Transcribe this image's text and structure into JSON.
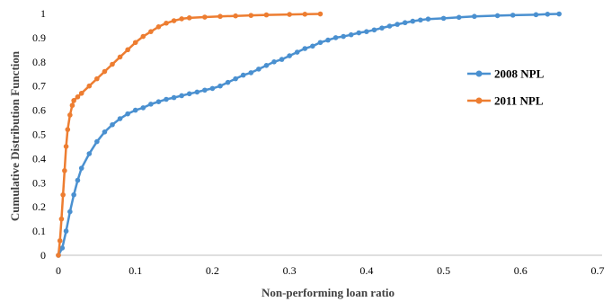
{
  "chart_data": {
    "type": "line",
    "title": "",
    "xlabel": "Non-performing loan ratio",
    "ylabel": "Cumulative Distribution Function",
    "xlim": [
      0,
      0.7
    ],
    "ylim": [
      0,
      1
    ],
    "x_ticks": [
      "0",
      "0.1",
      "0.2",
      "0.3",
      "0.4",
      "0.5",
      "0.6",
      "0.7"
    ],
    "y_ticks": [
      "0",
      "0.1",
      "0.2",
      "0.3",
      "0.4",
      "0.5",
      "0.6",
      "0.7",
      "0.8",
      "0.9",
      "1"
    ],
    "grid": false,
    "legend_position": "right",
    "series": [
      {
        "name": "2008 NPL",
        "color": "#4A90D0",
        "points": [
          [
            0,
            0
          ],
          [
            0.005,
            0.03
          ],
          [
            0.01,
            0.1
          ],
          [
            0.015,
            0.18
          ],
          [
            0.02,
            0.25
          ],
          [
            0.025,
            0.31
          ],
          [
            0.03,
            0.36
          ],
          [
            0.04,
            0.42
          ],
          [
            0.05,
            0.47
          ],
          [
            0.06,
            0.51
          ],
          [
            0.07,
            0.54
          ],
          [
            0.08,
            0.565
          ],
          [
            0.09,
            0.585
          ],
          [
            0.1,
            0.6
          ],
          [
            0.11,
            0.61
          ],
          [
            0.12,
            0.625
          ],
          [
            0.13,
            0.635
          ],
          [
            0.14,
            0.645
          ],
          [
            0.15,
            0.652
          ],
          [
            0.16,
            0.66
          ],
          [
            0.17,
            0.668
          ],
          [
            0.18,
            0.675
          ],
          [
            0.19,
            0.683
          ],
          [
            0.2,
            0.69
          ],
          [
            0.21,
            0.7
          ],
          [
            0.22,
            0.715
          ],
          [
            0.23,
            0.73
          ],
          [
            0.24,
            0.745
          ],
          [
            0.25,
            0.755
          ],
          [
            0.26,
            0.77
          ],
          [
            0.27,
            0.785
          ],
          [
            0.28,
            0.8
          ],
          [
            0.29,
            0.81
          ],
          [
            0.3,
            0.825
          ],
          [
            0.31,
            0.84
          ],
          [
            0.32,
            0.855
          ],
          [
            0.33,
            0.865
          ],
          [
            0.34,
            0.88
          ],
          [
            0.35,
            0.89
          ],
          [
            0.36,
            0.9
          ],
          [
            0.37,
            0.905
          ],
          [
            0.38,
            0.912
          ],
          [
            0.39,
            0.92
          ],
          [
            0.4,
            0.925
          ],
          [
            0.41,
            0.932
          ],
          [
            0.42,
            0.94
          ],
          [
            0.43,
            0.948
          ],
          [
            0.44,
            0.955
          ],
          [
            0.45,
            0.962
          ],
          [
            0.46,
            0.968
          ],
          [
            0.47,
            0.973
          ],
          [
            0.48,
            0.977
          ],
          [
            0.5,
            0.98
          ],
          [
            0.52,
            0.984
          ],
          [
            0.54,
            0.988
          ],
          [
            0.57,
            0.991
          ],
          [
            0.59,
            0.993
          ],
          [
            0.62,
            0.995
          ],
          [
            0.635,
            0.997
          ],
          [
            0.65,
            0.998
          ]
        ]
      },
      {
        "name": "2011 NPL",
        "color": "#ED7D31",
        "points": [
          [
            0,
            0
          ],
          [
            0.002,
            0.06
          ],
          [
            0.004,
            0.15
          ],
          [
            0.006,
            0.25
          ],
          [
            0.008,
            0.35
          ],
          [
            0.01,
            0.45
          ],
          [
            0.012,
            0.52
          ],
          [
            0.015,
            0.58
          ],
          [
            0.018,
            0.62
          ],
          [
            0.02,
            0.64
          ],
          [
            0.025,
            0.655
          ],
          [
            0.03,
            0.67
          ],
          [
            0.04,
            0.7
          ],
          [
            0.05,
            0.73
          ],
          [
            0.06,
            0.76
          ],
          [
            0.07,
            0.79
          ],
          [
            0.08,
            0.82
          ],
          [
            0.09,
            0.85
          ],
          [
            0.1,
            0.88
          ],
          [
            0.11,
            0.905
          ],
          [
            0.12,
            0.925
          ],
          [
            0.13,
            0.945
          ],
          [
            0.14,
            0.96
          ],
          [
            0.15,
            0.97
          ],
          [
            0.16,
            0.978
          ],
          [
            0.17,
            0.982
          ],
          [
            0.19,
            0.985
          ],
          [
            0.21,
            0.988
          ],
          [
            0.23,
            0.99
          ],
          [
            0.25,
            0.992
          ],
          [
            0.27,
            0.994
          ],
          [
            0.3,
            0.996
          ],
          [
            0.32,
            0.997
          ],
          [
            0.34,
            0.998
          ]
        ]
      }
    ]
  }
}
